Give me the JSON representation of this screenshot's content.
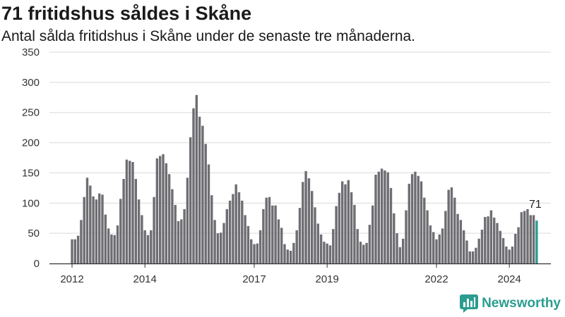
{
  "header": {
    "title": "71 fritidshus såldes i Skåne",
    "subtitle": "Antal sålda fritidshus i Skåne under de senaste tre månaderna."
  },
  "brand": {
    "name": "Newsworthy",
    "color": "#2a9d8f"
  },
  "colors": {
    "bar": "#6e6d72",
    "highlight": "#2a9d8f",
    "grid": "#d9d9d9",
    "axis": "#333333"
  },
  "chart_data": {
    "type": "bar",
    "ylim": [
      0,
      350
    ],
    "yticks": [
      0,
      50,
      100,
      150,
      200,
      250,
      300,
      350
    ],
    "xticks": [
      {
        "label": "2012",
        "index": 0
      },
      {
        "label": "2014",
        "index": 24
      },
      {
        "label": "2017",
        "index": 60
      },
      {
        "label": "2019",
        "index": 84
      },
      {
        "label": "2022",
        "index": 120
      },
      {
        "label": "2024",
        "index": 144
      }
    ],
    "grid": "horizontal",
    "values": [
      40,
      40,
      46,
      72,
      110,
      142,
      129,
      111,
      106,
      116,
      114,
      81,
      58,
      48,
      47,
      63,
      107,
      140,
      172,
      170,
      168,
      140,
      106,
      80,
      55,
      47,
      55,
      110,
      174,
      178,
      181,
      166,
      148,
      123,
      97,
      70,
      73,
      90,
      142,
      209,
      257,
      279,
      243,
      228,
      198,
      164,
      113,
      72,
      50,
      51,
      67,
      90,
      104,
      115,
      131,
      118,
      104,
      80,
      62,
      40,
      32,
      33,
      55,
      90,
      109,
      110,
      96,
      96,
      73,
      59,
      32,
      23,
      21,
      34,
      55,
      92,
      135,
      153,
      141,
      120,
      93,
      66,
      48,
      36,
      33,
      30,
      57,
      95,
      117,
      136,
      131,
      138,
      118,
      97,
      57,
      36,
      31,
      34,
      64,
      96,
      147,
      152,
      157,
      154,
      151,
      125,
      83,
      50,
      27,
      41,
      88,
      132,
      148,
      152,
      145,
      136,
      109,
      88,
      63,
      52,
      40,
      48,
      58,
      87,
      122,
      126,
      109,
      82,
      72,
      55,
      38,
      20,
      20,
      26,
      41,
      56,
      77,
      78,
      88,
      76,
      67,
      54,
      42,
      28,
      23,
      28,
      49,
      60,
      85,
      87,
      90,
      80,
      80,
      71
    ],
    "highlight_last": true,
    "last_label": "71"
  }
}
